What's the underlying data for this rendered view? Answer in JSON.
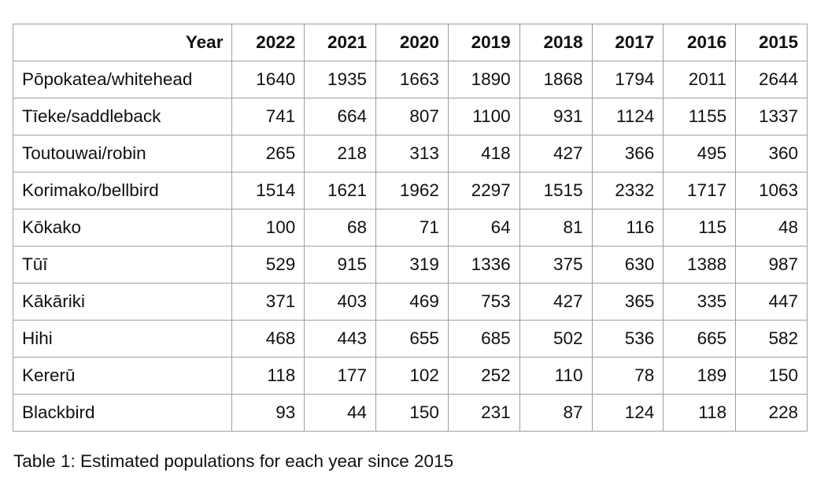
{
  "table": {
    "header_label": "Year",
    "years": [
      "2022",
      "2021",
      "2020",
      "2019",
      "2018",
      "2017",
      "2016",
      "2015"
    ],
    "rows": [
      {
        "label": "Pōpokatea/whitehead",
        "values": [
          "1640",
          "1935",
          "1663",
          "1890",
          "1868",
          "1794",
          "2011",
          "2644"
        ]
      },
      {
        "label": "Tīeke/saddleback",
        "values": [
          "741",
          "664",
          "807",
          "1100",
          "931",
          "1124",
          "1155",
          "1337"
        ]
      },
      {
        "label": "Toutouwai/robin",
        "values": [
          "265",
          "218",
          "313",
          "418",
          "427",
          "366",
          "495",
          "360"
        ]
      },
      {
        "label": "Korimako/bellbird",
        "values": [
          "1514",
          "1621",
          "1962",
          "2297",
          "1515",
          "2332",
          "1717",
          "1063"
        ]
      },
      {
        "label": "Kōkako",
        "values": [
          "100",
          "68",
          "71",
          "64",
          "81",
          "116",
          "115",
          "48"
        ]
      },
      {
        "label": "Tūī",
        "values": [
          "529",
          "915",
          "319",
          "1336",
          "375",
          "630",
          "1388",
          "987"
        ]
      },
      {
        "label": "Kākāriki",
        "values": [
          "371",
          "403",
          "469",
          "753",
          "427",
          "365",
          "335",
          "447"
        ]
      },
      {
        "label": "Hihi",
        "values": [
          "468",
          "443",
          "655",
          "685",
          "502",
          "536",
          "665",
          "582"
        ]
      },
      {
        "label": "Kererū",
        "values": [
          "118",
          "177",
          "102",
          "252",
          "110",
          "78",
          "189",
          "150"
        ]
      },
      {
        "label": "Blackbird",
        "values": [
          "93",
          "44",
          "150",
          "231",
          "87",
          "124",
          "118",
          "228"
        ]
      }
    ]
  },
  "caption": "Table 1: Estimated populations for each year since 2015"
}
